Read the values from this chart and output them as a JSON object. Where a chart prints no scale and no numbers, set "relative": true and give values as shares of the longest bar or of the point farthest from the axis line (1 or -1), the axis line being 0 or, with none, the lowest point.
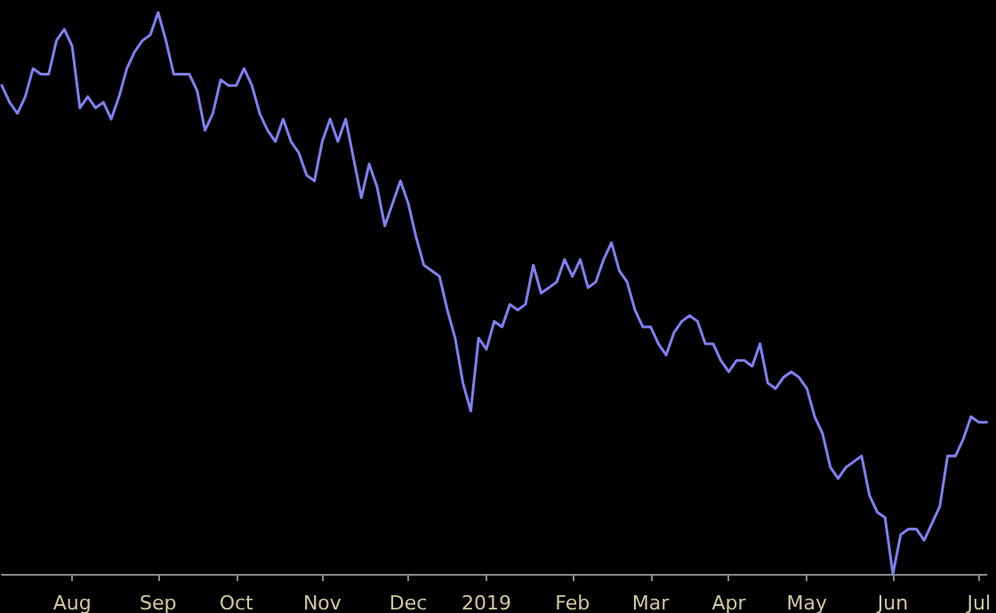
{
  "chart_data": {
    "type": "line",
    "relative": true,
    "color": "#8080f0",
    "categories": [
      null,
      null,
      null,
      null,
      null,
      null,
      null,
      null,
      null,
      "Aug",
      null,
      null,
      null,
      null,
      null,
      null,
      null,
      null,
      null,
      null,
      "Sep",
      null,
      null,
      null,
      null,
      null,
      null,
      null,
      null,
      null,
      "Oct",
      null,
      null,
      null,
      null,
      null,
      null,
      null,
      null,
      null,
      null,
      "Nov",
      null,
      null,
      null,
      null,
      null,
      null,
      null,
      null,
      null,
      null,
      "Dec",
      null,
      null,
      null,
      null,
      null,
      null,
      null,
      null,
      null,
      "2019",
      null,
      null,
      null,
      null,
      null,
      null,
      null,
      null,
      null,
      null,
      "Feb",
      null,
      null,
      null,
      null,
      null,
      null,
      null,
      null,
      null,
      "Mar",
      null,
      null,
      null,
      null,
      null,
      null,
      null,
      null,
      null,
      "Apr",
      null,
      null,
      null,
      null,
      null,
      null,
      null,
      null,
      null,
      "May",
      null,
      null,
      null,
      null,
      null,
      null,
      null,
      null,
      null,
      null,
      "Jun",
      null,
      null,
      null,
      null,
      null,
      null,
      null,
      null,
      null,
      null,
      "Jul",
      null
    ],
    "values": [
      0.87,
      0.84,
      0.82,
      0.85,
      0.9,
      0.89,
      0.89,
      0.95,
      0.97,
      0.94,
      0.83,
      0.85,
      0.83,
      0.84,
      0.81,
      0.85,
      0.9,
      0.93,
      0.95,
      0.96,
      1.0,
      0.95,
      0.89,
      0.89,
      0.89,
      0.86,
      0.79,
      0.82,
      0.88,
      0.87,
      0.87,
      0.9,
      0.87,
      0.82,
      0.79,
      0.77,
      0.81,
      0.77,
      0.75,
      0.71,
      0.7,
      0.77,
      0.81,
      0.77,
      0.81,
      0.74,
      0.67,
      0.73,
      0.69,
      0.62,
      0.66,
      0.7,
      0.66,
      0.6,
      0.55,
      0.54,
      0.53,
      0.47,
      0.42,
      0.34,
      0.29,
      0.42,
      0.4,
      0.45,
      0.44,
      0.48,
      0.47,
      0.48,
      0.55,
      0.5,
      0.51,
      0.52,
      0.56,
      0.53,
      0.56,
      0.51,
      0.52,
      0.56,
      0.59,
      0.54,
      0.52,
      0.47,
      0.44,
      0.44,
      0.41,
      0.39,
      0.43,
      0.45,
      0.46,
      0.45,
      0.41,
      0.41,
      0.38,
      0.36,
      0.38,
      0.38,
      0.37,
      0.41,
      0.34,
      0.33,
      0.35,
      0.36,
      0.35,
      0.33,
      0.28,
      0.25,
      0.19,
      0.17,
      0.19,
      0.2,
      0.21,
      0.14,
      0.11,
      0.1,
      0.0,
      0.07,
      0.08,
      0.08,
      0.06,
      0.09,
      0.12,
      0.21,
      0.21,
      0.24,
      0.28,
      0.27,
      0.27
    ]
  }
}
